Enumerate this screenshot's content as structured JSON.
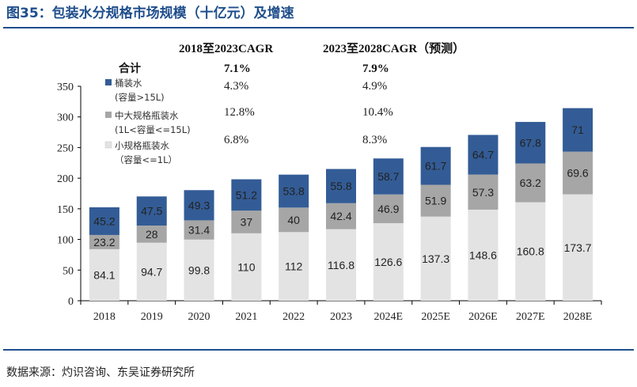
{
  "title": "图35：包装水分规格市场规模（十亿元）及增速",
  "source": "数据来源：灼识咨询、东吴证券研究所",
  "cagr_table": {
    "col1_header": "2018至2023CAGR",
    "col2_header": "2023至2028CAGR（预测）",
    "total_label": "合计",
    "total_col1": "7.1%",
    "total_col2": "7.9%",
    "rows": [
      {
        "legend_line1": "桶装水",
        "legend_line2": "(容量>15L)",
        "col1": "4.3%",
        "col2": "4.9%"
      },
      {
        "legend_line1": "中大规格瓶装水",
        "legend_line2": "(1L<容量<=15L)",
        "col1": "12.8%",
        "col2": "10.4%"
      },
      {
        "legend_line1": "小规格瓶装水",
        "legend_line2": "（容量<=1L）",
        "col1": "6.8%",
        "col2": "8.3%"
      }
    ]
  },
  "colors": {
    "barrel": "#335c96",
    "medium": "#a6a6a6",
    "small": "#e3e3e3",
    "title": "#1f4e8c"
  },
  "chart_data": {
    "type": "bar",
    "stacked": true,
    "categories": [
      "2018",
      "2019",
      "2020",
      "2021",
      "2022",
      "2023",
      "2024E",
      "2025E",
      "2026E",
      "2027E",
      "2028E"
    ],
    "series": [
      {
        "name": "小规格瓶装水（容量<=1L）",
        "key": "small",
        "values": [
          84.1,
          94.7,
          99.8,
          110,
          112,
          116.8,
          126.6,
          137.3,
          148.6,
          160.8,
          173.7
        ]
      },
      {
        "name": "中大规格瓶装水(1L<容量<=15L)",
        "key": "medium",
        "values": [
          23.2,
          28,
          31.4,
          37,
          40,
          42.4,
          46.9,
          51.9,
          57.3,
          63.2,
          69.6
        ]
      },
      {
        "name": "桶装水(容量>15L)",
        "key": "barrel",
        "values": [
          45.2,
          47.5,
          49.3,
          51.2,
          53.8,
          55.8,
          58.7,
          61.7,
          64.7,
          67.8,
          71
        ]
      }
    ],
    "ylim": [
      0,
      350
    ],
    "yticks": [
      0,
      50,
      100,
      150,
      200,
      250,
      300,
      350
    ],
    "grid": false,
    "legend_position": "top-left"
  }
}
